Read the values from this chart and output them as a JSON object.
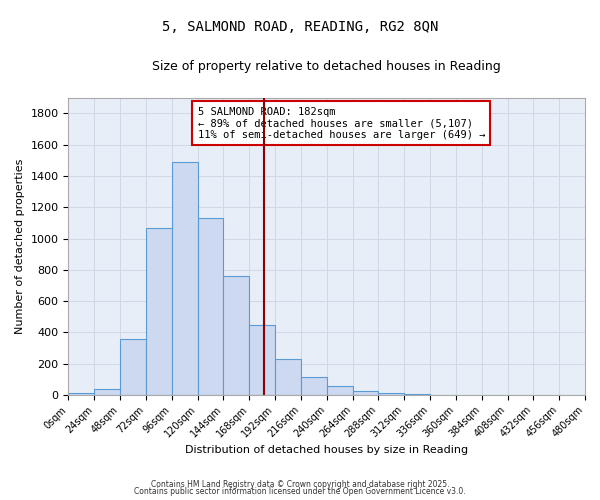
{
  "title": "5, SALMOND ROAD, READING, RG2 8QN",
  "subtitle": "Size of property relative to detached houses in Reading",
  "xlabel": "Distribution of detached houses by size in Reading",
  "ylabel": "Number of detached properties",
  "bin_edges": [
    0,
    24,
    48,
    72,
    96,
    120,
    144,
    168,
    192,
    216,
    240,
    264,
    288,
    312,
    336,
    360,
    384,
    408,
    432,
    456,
    480
  ],
  "bin_counts": [
    15,
    35,
    360,
    1070,
    1490,
    1130,
    760,
    445,
    230,
    115,
    55,
    25,
    15,
    5,
    0,
    0,
    0,
    0,
    0,
    0
  ],
  "bar_facecolor": "#ccd9f0",
  "bar_edgecolor": "#5b9bd5",
  "vline_x": 182,
  "vline_color": "#8b0000",
  "ylim": [
    0,
    1900
  ],
  "yticks": [
    0,
    200,
    400,
    600,
    800,
    1000,
    1200,
    1400,
    1600,
    1800
  ],
  "annotation_title": "5 SALMOND ROAD: 182sqm",
  "annotation_line1": "← 89% of detached houses are smaller (5,107)",
  "annotation_line2": "11% of semi-detached houses are larger (649) →",
  "grid_color": "#d0d8e8",
  "plot_bg_color": "#e8eef8",
  "fig_bg_color": "#ffffff",
  "footer1": "Contains HM Land Registry data © Crown copyright and database right 2025.",
  "footer2": "Contains public sector information licensed under the Open Government Licence v3.0."
}
